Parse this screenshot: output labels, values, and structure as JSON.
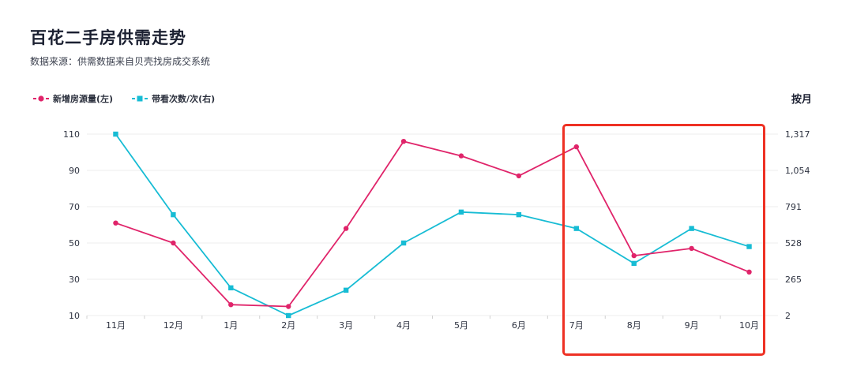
{
  "header": {
    "title": "百花二手房供需走势",
    "subtitle": "数据来源：供需数据来自贝壳找房成交系统",
    "period_label": "按月"
  },
  "colors": {
    "new_listings": "#e0246a",
    "viewings": "#17bcd4",
    "highlight_box": "#ee3124",
    "grid": "#eeeeee"
  },
  "chart_data": {
    "type": "line",
    "title": "百花二手房供需走势",
    "categories": [
      "11月",
      "12月",
      "1月",
      "2月",
      "3月",
      "4月",
      "5月",
      "6月",
      "7月",
      "8月",
      "9月",
      "10月"
    ],
    "series": [
      {
        "name": "新增房源量(左)",
        "axis": "left",
        "marker": "circle",
        "values": [
          61,
          50,
          16,
          15,
          58,
          106,
          98,
          87,
          103,
          43,
          47,
          34
        ]
      },
      {
        "name": "带看次数/次(右)",
        "axis": "right",
        "marker": "square",
        "values": [
          1317,
          733,
          203,
          2,
          186,
          528,
          752,
          733,
          633,
          380,
          633,
          502
        ]
      }
    ],
    "y_left": {
      "ticks": [
        10,
        30,
        50,
        70,
        90,
        110
      ],
      "range": [
        10,
        110
      ]
    },
    "y_right": {
      "ticks": [
        "2",
        "265",
        "528",
        "791",
        "1,054",
        "1,317"
      ],
      "range": [
        2,
        1317
      ]
    },
    "grid": true,
    "legend_position": "top-left",
    "highlight_categories": [
      "7月",
      "8月",
      "9月",
      "10月"
    ]
  }
}
